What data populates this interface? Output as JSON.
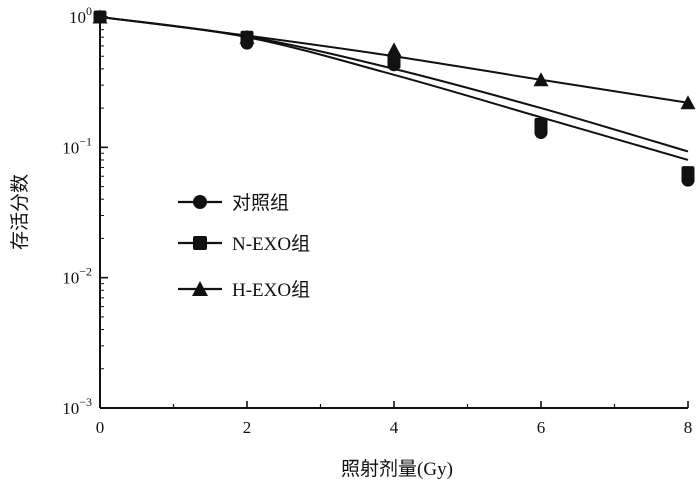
{
  "chart_data": {
    "type": "scatter",
    "xlabel": "照射剂量(Gy)",
    "ylabel": "存活分数",
    "x_ticks": [
      "0",
      "2",
      "4",
      "6",
      "8"
    ],
    "y_ticks": [
      {
        "value": 1,
        "base": "10",
        "exp": "0"
      },
      {
        "value": 0.1,
        "base": "10",
        "exp": "−1"
      },
      {
        "value": 0.01,
        "base": "10",
        "exp": "−2"
      },
      {
        "value": 0.001,
        "base": "10",
        "exp": "−3"
      }
    ],
    "xlim": [
      0,
      8
    ],
    "ylim": [
      0.001,
      1
    ],
    "yscale": "log",
    "grid": false,
    "legend_position": "center-left",
    "series": [
      {
        "name": "对照组",
        "marker": "circle",
        "x": [
          0,
          2,
          4,
          4,
          6,
          6,
          8,
          8
        ],
        "y": [
          1.0,
          0.63,
          0.43,
          0.45,
          0.13,
          0.14,
          0.056,
          0.06
        ],
        "fit_x": [
          0,
          2,
          4,
          6,
          8
        ],
        "fit_y": [
          1.0,
          0.7,
          0.36,
          0.17,
          0.08
        ]
      },
      {
        "name": "N-EXO组",
        "marker": "square",
        "x": [
          0,
          2,
          4,
          4,
          6,
          6,
          8,
          8
        ],
        "y": [
          1.0,
          0.7,
          0.45,
          0.47,
          0.14,
          0.15,
          0.06,
          0.064
        ],
        "fit_x": [
          0,
          2,
          4,
          6,
          8
        ],
        "fit_y": [
          1.0,
          0.71,
          0.4,
          0.2,
          0.093
        ]
      },
      {
        "name": "H-EXO组",
        "marker": "triangle",
        "x": [
          0,
          2,
          4,
          6,
          8
        ],
        "y": [
          1.0,
          0.7,
          0.56,
          0.33,
          0.22
        ],
        "fit_x": [
          0,
          2,
          4,
          6,
          8
        ],
        "fit_y": [
          1.0,
          0.72,
          0.5,
          0.33,
          0.22
        ]
      }
    ]
  },
  "colors": {
    "ink": "#111111",
    "background": "#ffffff"
  }
}
